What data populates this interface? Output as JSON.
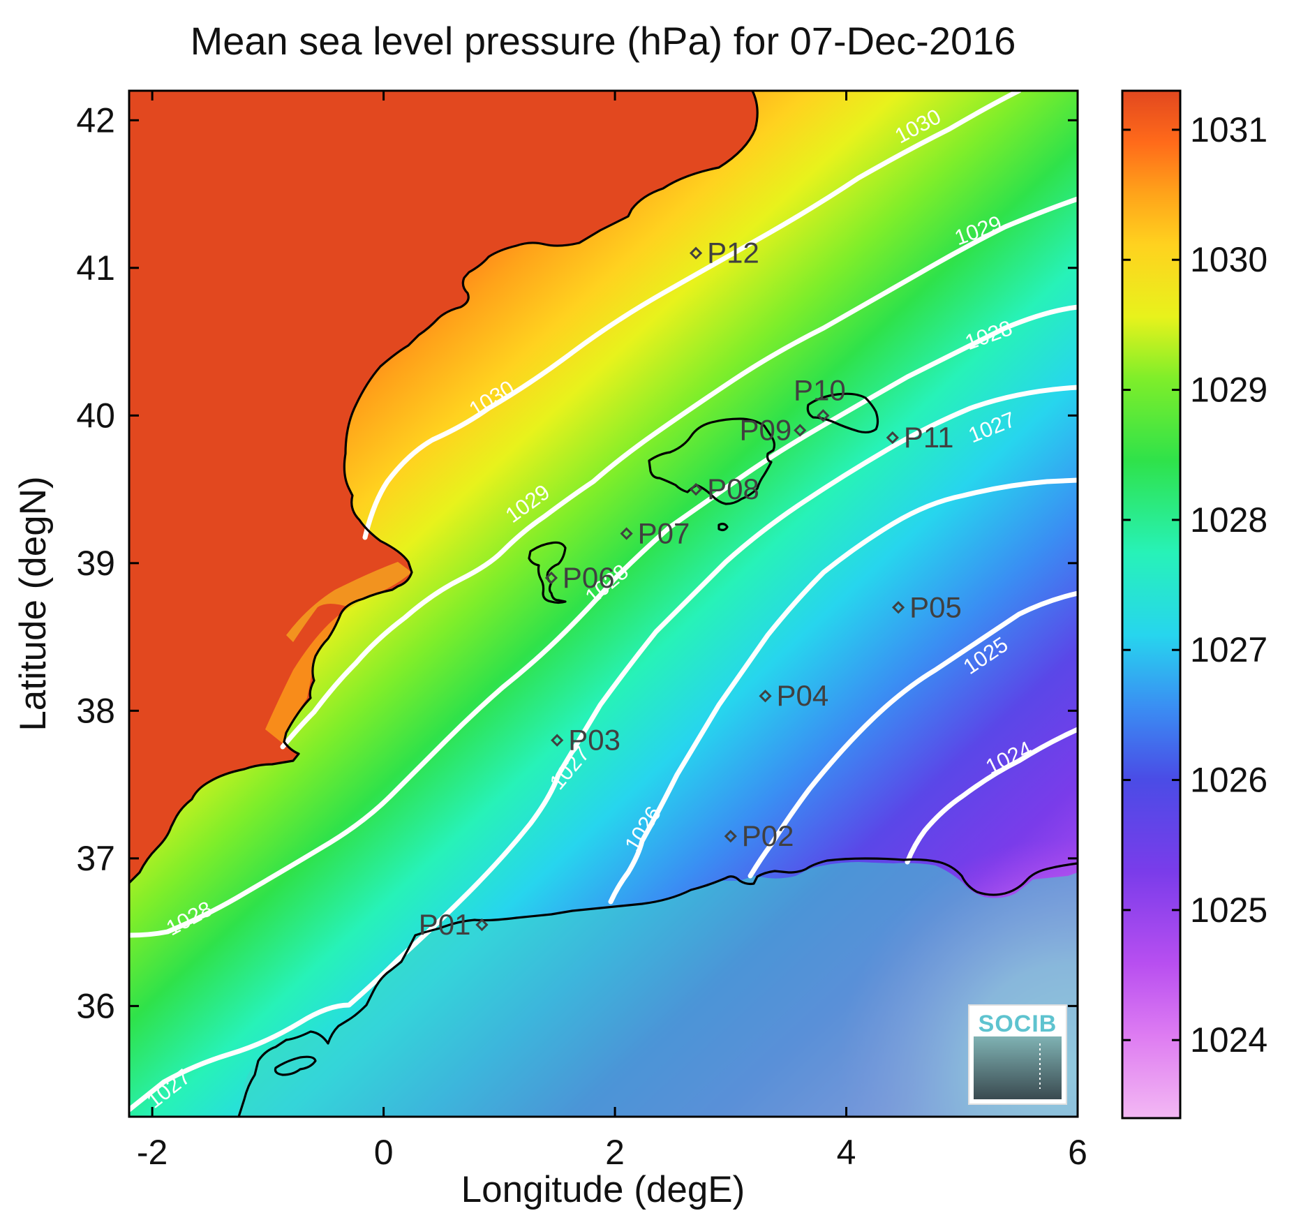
{
  "title": "Mean sea level pressure (hPa) for 07-Dec-2016",
  "xlabel": "Longitude (degE)",
  "ylabel": "Latitude (degN)",
  "x_ticks": [
    "-2",
    "0",
    "2",
    "4",
    "6"
  ],
  "y_ticks": [
    "36",
    "37",
    "38",
    "39",
    "40",
    "41",
    "42"
  ],
  "colorbar": {
    "ticks": [
      "1024",
      "1025",
      "1026",
      "1027",
      "1028",
      "1029",
      "1030",
      "1031"
    ]
  },
  "contour_labels": [
    {
      "text": "1030",
      "value": 1030
    },
    {
      "text": "1030",
      "value": 1030
    },
    {
      "text": "1029",
      "value": 1029
    },
    {
      "text": "1029",
      "value": 1029
    },
    {
      "text": "1028",
      "value": 1028
    },
    {
      "text": "1028",
      "value": 1028
    },
    {
      "text": "1028",
      "value": 1028
    },
    {
      "text": "1027",
      "value": 1027
    },
    {
      "text": "1027",
      "value": 1027
    },
    {
      "text": "1027",
      "value": 1027
    },
    {
      "text": "1026",
      "value": 1026
    },
    {
      "text": "1025",
      "value": 1025
    },
    {
      "text": "1024",
      "value": 1024
    }
  ],
  "stations": [
    {
      "name": "P01",
      "lon": 0.85,
      "lat": 36.55
    },
    {
      "name": "P02",
      "lon": 3.0,
      "lat": 37.15
    },
    {
      "name": "P03",
      "lon": 1.5,
      "lat": 37.8
    },
    {
      "name": "P04",
      "lon": 3.3,
      "lat": 38.1
    },
    {
      "name": "P05",
      "lon": 4.45,
      "lat": 38.7
    },
    {
      "name": "P06",
      "lon": 1.45,
      "lat": 38.9
    },
    {
      "name": "P07",
      "lon": 2.1,
      "lat": 39.2
    },
    {
      "name": "P08",
      "lon": 2.7,
      "lat": 39.5
    },
    {
      "name": "P09",
      "lon": 3.6,
      "lat": 39.9
    },
    {
      "name": "P10",
      "lon": 3.8,
      "lat": 40.0
    },
    {
      "name": "P11",
      "lon": 4.4,
      "lat": 39.85
    },
    {
      "name": "P12",
      "lon": 2.7,
      "lat": 41.1
    }
  ],
  "logo": {
    "text": "SOCIB"
  },
  "chart_data": {
    "type": "heatmap",
    "title": "Mean sea level pressure (hPa) for 07-Dec-2016",
    "xlabel": "Longitude (degE)",
    "ylabel": "Latitude (degN)",
    "xlim": [
      -2.2,
      6.0
    ],
    "ylim": [
      35.25,
      42.2
    ],
    "colorbar_range": [
      1023.4,
      1031.3
    ],
    "contour_levels": [
      1024,
      1025,
      1026,
      1027,
      1028,
      1029,
      1030
    ],
    "colormap": [
      "#f3b8f3",
      "#c64bf0",
      "#7a3cea",
      "#3f55e6",
      "#3a8ef3",
      "#27d5ee",
      "#27f2b8",
      "#2fe24a",
      "#7fee2a",
      "#e8f21c",
      "#ffd21f",
      "#ffa31a",
      "#ff6a1a",
      "#e2481f"
    ],
    "land_color": "#e2481f",
    "coastline_color": "#000000",
    "contour_color": "#ffffff"
  }
}
